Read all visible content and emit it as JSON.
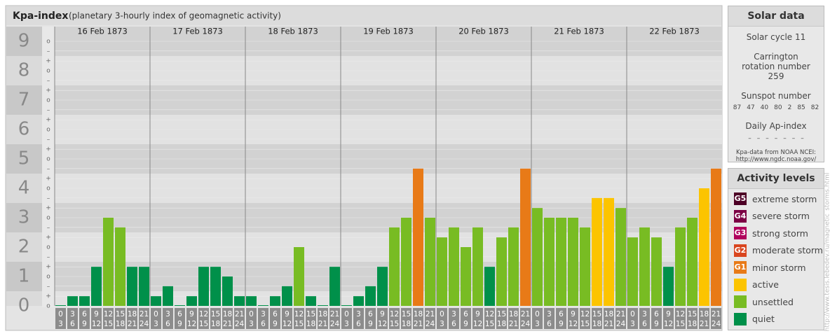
{
  "chart_data": {
    "type": "bar",
    "title": "Kpa-index",
    "subtitle": "(planetary 3-hourly index of geomagnetic activity)",
    "days": [
      "16 Feb 1873",
      "17 Feb 1873",
      "18 Feb 1873",
      "19 Feb 1873",
      "20 Feb 1873",
      "21 Feb 1873",
      "22 Feb 1873"
    ],
    "hours": [
      0,
      3,
      6,
      9,
      12,
      15,
      18,
      21,
      24
    ],
    "values": [
      0,
      0.33,
      0.33,
      1.33,
      3,
      2.67,
      1.33,
      1.33,
      0.33,
      0.67,
      0,
      0.33,
      1.33,
      1.33,
      1,
      0.33,
      0.33,
      0,
      0.33,
      0.67,
      2,
      0.33,
      0,
      1.33,
      0,
      0.33,
      0.67,
      1.33,
      2.67,
      3,
      4.67,
      3,
      2.33,
      2.67,
      2,
      2.67,
      1.33,
      2.33,
      2.67,
      4.67,
      3.33,
      3,
      3,
      3,
      2.67,
      3.67,
      3.67,
      3.33,
      2.33,
      2.67,
      2.33,
      1.33,
      2.67,
      3,
      4,
      4.67
    ],
    "colors": [
      "#00904a",
      "#00904a",
      "#00904a",
      "#00904a",
      "#78bc23",
      "#78bc23",
      "#00904a",
      "#00904a",
      "#00904a",
      "#00904a",
      "#00904a",
      "#00904a",
      "#00904a",
      "#00904a",
      "#00904a",
      "#00904a",
      "#00904a",
      "#00904a",
      "#00904a",
      "#00904a",
      "#78bc23",
      "#00904a",
      "#00904a",
      "#00904a",
      "#00904a",
      "#00904a",
      "#00904a",
      "#00904a",
      "#78bc23",
      "#78bc23",
      "#e87a17",
      "#78bc23",
      "#78bc23",
      "#78bc23",
      "#78bc23",
      "#78bc23",
      "#00904a",
      "#78bc23",
      "#78bc23",
      "#e87a17",
      "#78bc23",
      "#78bc23",
      "#78bc23",
      "#78bc23",
      "#78bc23",
      "#fcc400",
      "#fcc400",
      "#78bc23",
      "#78bc23",
      "#78bc23",
      "#78bc23",
      "#00904a",
      "#78bc23",
      "#78bc23",
      "#fcc400",
      "#e87a17"
    ],
    "ylim": [
      0,
      9.5
    ],
    "yticks": [
      0,
      1,
      2,
      3,
      4,
      5,
      6,
      7,
      8,
      9
    ],
    "minor_yticks": [
      {
        "value": 0,
        "label": "o"
      },
      {
        "value": 0.33,
        "label": "+"
      },
      {
        "value": 0.67,
        "label": "–"
      },
      {
        "value": 1,
        "label": "o"
      },
      {
        "value": 1.33,
        "label": "+"
      },
      {
        "value": 1.67,
        "label": "–"
      },
      {
        "value": 2,
        "label": "o"
      },
      {
        "value": 2.33,
        "label": "+"
      },
      {
        "value": 2.67,
        "label": "–"
      },
      {
        "value": 3,
        "label": "o"
      },
      {
        "value": 3.33,
        "label": "+"
      },
      {
        "value": 3.67,
        "label": "–"
      },
      {
        "value": 4,
        "label": "o"
      },
      {
        "value": 4.33,
        "label": "+"
      },
      {
        "value": 4.67,
        "label": "–"
      },
      {
        "value": 5,
        "label": "o"
      },
      {
        "value": 5.33,
        "label": "+"
      },
      {
        "value": 5.67,
        "label": "–"
      },
      {
        "value": 6,
        "label": "o"
      },
      {
        "value": 6.33,
        "label": "+"
      },
      {
        "value": 6.67,
        "label": "–"
      },
      {
        "value": 7,
        "label": "o"
      },
      {
        "value": 7.33,
        "label": "+"
      },
      {
        "value": 7.67,
        "label": "–"
      },
      {
        "value": 8,
        "label": "o"
      },
      {
        "value": 8.33,
        "label": "+"
      },
      {
        "value": 8.67,
        "label": "–"
      },
      {
        "value": 9,
        "label": "o"
      }
    ],
    "grid": true
  },
  "solar_data": {
    "title": "Solar data",
    "cycle": "Solar cycle 11",
    "carrington": "Carrington rotation number 259",
    "sunspot_label": "Sunspot number",
    "sunspots": [
      87,
      47,
      40,
      80,
      2,
      85,
      82
    ],
    "ap_label": "Daily Ap-index",
    "ap": [
      "–",
      "–",
      "–",
      "–",
      "–",
      "–",
      "–"
    ],
    "source": "Kpa-data from NOAA NCEI: http://www.ngdc.noaa.gov/"
  },
  "activity_levels": {
    "title": "Activity levels",
    "items": [
      {
        "code": "G5",
        "label": "extreme storm",
        "color": "#4d0025"
      },
      {
        "code": "G4",
        "label": "severe storm",
        "color": "#7c0044"
      },
      {
        "code": "G3",
        "label": "strong storm",
        "color": "#b0005c"
      },
      {
        "code": "G2",
        "label": "moderate storm",
        "color": "#d9451e"
      },
      {
        "code": "G1",
        "label": "minor storm",
        "color": "#e87a17"
      },
      {
        "label": "active",
        "color": "#fcc400"
      },
      {
        "label": "unsettled",
        "color": "#78bc23"
      },
      {
        "label": "quiet",
        "color": "#00904a"
      }
    ]
  },
  "watermark": "http://www.tesis.lebedev.ru/magnetic_storms.html"
}
